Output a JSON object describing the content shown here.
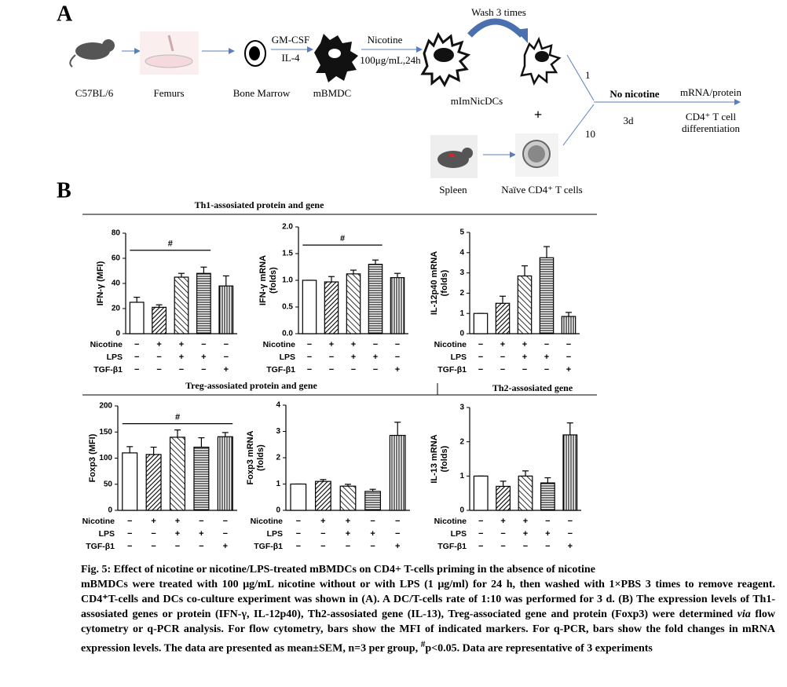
{
  "figure_a": {
    "label": "A",
    "mouse": "C57BL/6",
    "femurs": "Femurs",
    "bone_marrow": "Bone Marrow",
    "gm_csf": "GM-CSF",
    "il4": "IL-4",
    "mbmdc": "mBMDC",
    "nicotine": "Nicotine",
    "dose": "100μg/mL,24h",
    "wash": "Wash 3 times",
    "mimnicdcs": "mImNicDCs",
    "plus": "+",
    "spleen": "Spleen",
    "naive": "Naïve CD4⁺ T cells",
    "ratio_dc": "1",
    "ratio_t": "10",
    "no_nicotine": "No nicotine",
    "days": "3d",
    "readout": "mRNA/protein",
    "outcome_1": "CD4⁺ T cell",
    "outcome_2": "differentiation"
  },
  "panel_b_label": "B",
  "sections": [
    "Th1-assosiated protein and gene",
    "Treg-assosiated protein and gene",
    "Th2-assosiated gene"
  ],
  "chart_data": [
    {
      "type": "bar",
      "ylabel": [
        "IFN-γ (MFI)"
      ],
      "ylim": [
        0,
        80
      ],
      "yticks": [
        0,
        20,
        40,
        60,
        80
      ],
      "categories": [
        null,
        null,
        null,
        null,
        null
      ],
      "values": [
        25,
        21,
        45,
        48,
        38
      ],
      "errors": [
        4,
        2,
        3,
        5,
        8
      ],
      "fills": [
        "white",
        "hatch-dense",
        "hatch",
        "horizontal",
        "vertical"
      ],
      "treatments": [
        {
          "name": "Nicotine",
          "marks": [
            "−",
            "+",
            "+",
            "−",
            "−"
          ]
        },
        {
          "name": "LPS",
          "marks": [
            "−",
            "−",
            "+",
            "+",
            "−"
          ]
        },
        {
          "name": "TGF-β1",
          "marks": [
            "−",
            "−",
            "−",
            "−",
            "+"
          ]
        }
      ],
      "annotation": {
        "text": "#",
        "span": [
          0,
          3
        ]
      }
    },
    {
      "type": "bar",
      "ylabel": [
        "IFN-γ mRNA",
        "(folds)"
      ],
      "ylim": [
        0,
        2
      ],
      "yticks": [
        {
          "value": 0,
          "label": "0.0"
        },
        0.5,
        {
          "value": 1,
          "label": "1.0"
        },
        1.5,
        {
          "value": 2,
          "label": "2.0"
        }
      ],
      "categories": [
        null,
        null,
        null,
        null,
        null
      ],
      "values": [
        1.0,
        0.97,
        1.12,
        1.3,
        1.05
      ],
      "errors": [
        0,
        0.1,
        0.07,
        0.08,
        0.08
      ],
      "fills": [
        "white",
        "hatch-dense",
        "hatch",
        "horizontal",
        "vertical"
      ],
      "treatments": [
        {
          "name": "Nicotine",
          "marks": [
            "−",
            "+",
            "+",
            "−",
            "−"
          ]
        },
        {
          "name": "LPS",
          "marks": [
            "−",
            "−",
            "+",
            "+",
            "−"
          ]
        },
        {
          "name": "TGF-β1",
          "marks": [
            "−",
            "−",
            "−",
            "−",
            "+"
          ]
        }
      ],
      "annotation": {
        "text": "#",
        "span": [
          0,
          3
        ]
      }
    },
    {
      "type": "bar",
      "ylabel": [
        "IL-12p40 mRNA",
        "(folds)"
      ],
      "ylim": [
        0,
        5
      ],
      "yticks": [
        0,
        1,
        2,
        3,
        4,
        5
      ],
      "categories": [
        null,
        null,
        null,
        null,
        null
      ],
      "values": [
        1.0,
        1.5,
        2.85,
        3.75,
        0.85
      ],
      "errors": [
        0,
        0.35,
        0.5,
        0.55,
        0.2
      ],
      "fills": [
        "white",
        "hatch-dense",
        "hatch",
        "horizontal",
        "vertical"
      ],
      "treatments": [
        {
          "name": "Nicotine",
          "marks": [
            "−",
            "+",
            "+",
            "−",
            "−"
          ]
        },
        {
          "name": "LPS",
          "marks": [
            "−",
            "−",
            "+",
            "+",
            "−"
          ]
        },
        {
          "name": "TGF-β1",
          "marks": [
            "−",
            "−",
            "−",
            "−",
            "+"
          ]
        }
      ]
    },
    {
      "type": "bar",
      "ylabel": [
        "Foxp3 (MFI)"
      ],
      "ylim": [
        0,
        200
      ],
      "yticks": [
        0,
        50,
        100,
        150,
        200
      ],
      "categories": [
        null,
        null,
        null,
        null,
        null
      ],
      "values": [
        110,
        107,
        140,
        121,
        141
      ],
      "errors": [
        12,
        14,
        14,
        18,
        8
      ],
      "fills": [
        "white",
        "hatch-dense",
        "hatch",
        "horizontal",
        "vertical"
      ],
      "treatments": [
        {
          "name": "Nicotine",
          "marks": [
            "−",
            "+",
            "+",
            "−",
            "−"
          ]
        },
        {
          "name": "LPS",
          "marks": [
            "−",
            "−",
            "+",
            "+",
            "−"
          ]
        },
        {
          "name": "TGF-β1",
          "marks": [
            "−",
            "−",
            "−",
            "−",
            "+"
          ]
        }
      ],
      "annotation": {
        "text": "#",
        "span": [
          0,
          4
        ]
      }
    },
    {
      "type": "bar",
      "ylabel": [
        "Foxp3 mRNA",
        "(folds)"
      ],
      "ylim": [
        0,
        4
      ],
      "yticks": [
        0,
        1,
        2,
        3,
        4
      ],
      "categories": [
        null,
        null,
        null,
        null,
        null
      ],
      "values": [
        1.0,
        1.1,
        0.92,
        0.72,
        2.85
      ],
      "errors": [
        0,
        0.07,
        0.07,
        0.08,
        0.5
      ],
      "fills": [
        "white",
        "hatch-dense",
        "hatch",
        "horizontal",
        "vertical"
      ],
      "treatments": [
        {
          "name": "Nicotine",
          "marks": [
            "−",
            "+",
            "+",
            "−",
            "−"
          ]
        },
        {
          "name": "LPS",
          "marks": [
            "−",
            "−",
            "+",
            "+",
            "−"
          ]
        },
        {
          "name": "TGF-β1",
          "marks": [
            "−",
            "−",
            "−",
            "−",
            "+"
          ]
        }
      ]
    },
    {
      "type": "bar",
      "ylabel": [
        "IL-13 mRNA",
        "(folds)"
      ],
      "ylim": [
        0,
        3
      ],
      "yticks": [
        0,
        1,
        2,
        3
      ],
      "categories": [
        null,
        null,
        null,
        null,
        null
      ],
      "values": [
        1.0,
        0.7,
        1.0,
        0.8,
        2.2
      ],
      "errors": [
        0,
        0.15,
        0.15,
        0.15,
        0.35
      ],
      "fills": [
        "white",
        "hatch-dense",
        "hatch",
        "horizontal",
        "vertical"
      ],
      "treatments": [
        {
          "name": "Nicotine",
          "marks": [
            "−",
            "+",
            "+",
            "−",
            "−"
          ]
        },
        {
          "name": "LPS",
          "marks": [
            "−",
            "−",
            "+",
            "+",
            "−"
          ]
        },
        {
          "name": "TGF-β1",
          "marks": [
            "−",
            "−",
            "−",
            "−",
            "+"
          ]
        }
      ]
    }
  ],
  "caption": {
    "title": "Fig. 5: Effect of nicotine or nicotine/LPS-treated mBMDCs on CD4+ T-cells priming in the absence of nicotine",
    "body": [
      "mBMDCs were treated with 100 μg/mL nicotine without or with LPS (1 μg/ml) for 24 h, then washed with 1×PBS 3 times to remove reagent. CD4⁺T-cells and DCs co-culture experiment was shown in (A). A DC/T-cells rate of 1:10 was performed for 3 d. (B) The expression levels of Th1-assosiated genes or protein (IFN-γ, IL-12p40), Th2-assosiated gene (IL-13), Treg-associated gene and protein (Foxp3) were determined ",
      "via",
      " flow cytometry or q-PCR analysis. For flow cytometry, bars show the MFI of indicated markers. For q-PCR, bars show the fold changes in mRNA expression levels. The data are presented as mean±SEM, n=3 per group, ",
      "#",
      "p<0.05. Data are representative of 3 experiments"
    ]
  }
}
